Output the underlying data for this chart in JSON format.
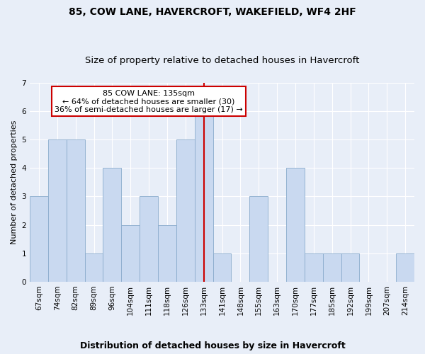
{
  "title": "85, COW LANE, HAVERCROFT, WAKEFIELD, WF4 2HF",
  "subtitle": "Size of property relative to detached houses in Havercroft",
  "xlabel_bottom": "Distribution of detached houses by size in Havercroft",
  "ylabel": "Number of detached properties",
  "categories": [
    "67sqm",
    "74sqm",
    "82sqm",
    "89sqm",
    "96sqm",
    "104sqm",
    "111sqm",
    "118sqm",
    "126sqm",
    "133sqm",
    "141sqm",
    "148sqm",
    "155sqm",
    "163sqm",
    "170sqm",
    "177sqm",
    "185sqm",
    "192sqm",
    "199sqm",
    "207sqm",
    "214sqm"
  ],
  "values": [
    3,
    5,
    5,
    1,
    4,
    2,
    3,
    2,
    5,
    6,
    1,
    0,
    3,
    0,
    4,
    1,
    1,
    1,
    0,
    0,
    1
  ],
  "bar_color": "#c9d9f0",
  "bar_edge_color": "#8aabcc",
  "highlight_index": 9,
  "vline_color": "#cc0000",
  "annotation_text": "85 COW LANE: 135sqm\n← 64% of detached houses are smaller (30)\n36% of semi-detached houses are larger (17) →",
  "annotation_box_color": "#ffffff",
  "annotation_box_edge": "#cc0000",
  "ylim": [
    0,
    7
  ],
  "yticks": [
    0,
    1,
    2,
    3,
    4,
    5,
    6,
    7
  ],
  "fig_bg_color": "#e8eef8",
  "ax_bg_color": "#e8eef8",
  "title_fontsize": 10,
  "subtitle_fontsize": 9.5,
  "ylabel_fontsize": 8,
  "xlabel_bottom_fontsize": 9,
  "tick_fontsize": 7.5,
  "annotation_fontsize": 8
}
